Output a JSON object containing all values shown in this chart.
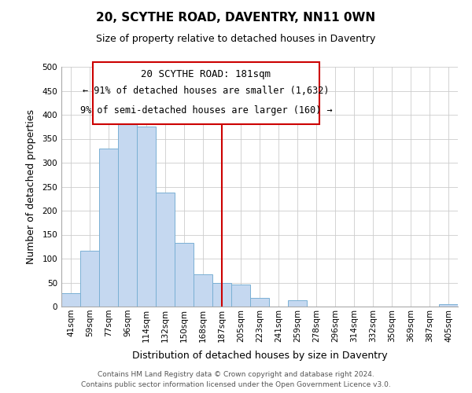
{
  "title": "20, SCYTHE ROAD, DAVENTRY, NN11 0WN",
  "subtitle": "Size of property relative to detached houses in Daventry",
  "xlabel": "Distribution of detached houses by size in Daventry",
  "ylabel": "Number of detached properties",
  "bar_labels": [
    "41sqm",
    "59sqm",
    "77sqm",
    "96sqm",
    "114sqm",
    "132sqm",
    "150sqm",
    "168sqm",
    "187sqm",
    "205sqm",
    "223sqm",
    "241sqm",
    "259sqm",
    "278sqm",
    "296sqm",
    "314sqm",
    "332sqm",
    "350sqm",
    "369sqm",
    "387sqm",
    "405sqm"
  ],
  "bar_heights": [
    28,
    116,
    330,
    385,
    375,
    237,
    132,
    68,
    50,
    46,
    18,
    0,
    13,
    0,
    0,
    0,
    0,
    0,
    0,
    0,
    5
  ],
  "bar_color": "#c5d8f0",
  "bar_edge_color": "#7ab0d4",
  "vline_x_idx": 8,
  "vline_color": "#cc0000",
  "ylim": [
    0,
    500
  ],
  "yticks": [
    0,
    50,
    100,
    150,
    200,
    250,
    300,
    350,
    400,
    450,
    500
  ],
  "annotation_title": "20 SCYTHE ROAD: 181sqm",
  "annotation_line1": "← 91% of detached houses are smaller (1,632)",
  "annotation_line2": "9% of semi-detached houses are larger (160) →",
  "annotation_box_color": "#ffffff",
  "annotation_border_color": "#cc0000",
  "footer_line1": "Contains HM Land Registry data © Crown copyright and database right 2024.",
  "footer_line2": "Contains public sector information licensed under the Open Government Licence v3.0.",
  "background_color": "#ffffff",
  "grid_color": "#cccccc",
  "title_fontsize": 11,
  "subtitle_fontsize": 9,
  "ylabel_fontsize": 9,
  "xlabel_fontsize": 9,
  "tick_fontsize": 7.5,
  "footer_fontsize": 6.5
}
